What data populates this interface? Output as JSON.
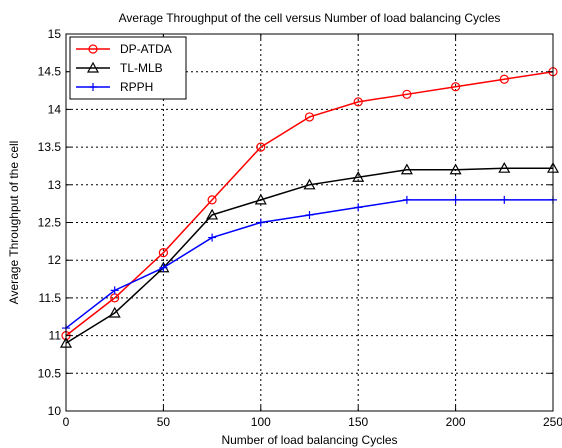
{
  "chart_data": {
    "type": "line",
    "title": "Average Throughput of the cell versus Number of load balancing Cycles",
    "xlabel": "Number of load balancing Cycles",
    "ylabel": "Average Throughput of the cell",
    "xlim": [
      0,
      250
    ],
    "ylim": [
      10,
      15
    ],
    "xticks": [
      0,
      50,
      100,
      150,
      200,
      250
    ],
    "yticks": [
      10,
      10.5,
      11,
      11.5,
      12,
      12.5,
      13,
      13.5,
      14,
      14.5,
      15
    ],
    "xtick_labels": [
      "0",
      "50",
      "100",
      "150",
      "200",
      "250"
    ],
    "ytick_labels": [
      "10",
      "10.5",
      "11",
      "11.5",
      "12",
      "12.5",
      "13",
      "13.5",
      "14",
      "14.5",
      "15"
    ],
    "grid": true,
    "legend_position": "top-left",
    "x": [
      0,
      25,
      50,
      75,
      100,
      125,
      150,
      175,
      200,
      225,
      250
    ],
    "series": [
      {
        "name": "DP-ATDA",
        "color": "#ff0000",
        "marker": "circle",
        "values": [
          11.0,
          11.5,
          12.1,
          12.8,
          13.5,
          13.9,
          14.1,
          14.2,
          14.3,
          14.4,
          14.5
        ]
      },
      {
        "name": "TL-MLB",
        "color": "#000000",
        "marker": "triangle",
        "values": [
          10.9,
          11.3,
          11.9,
          12.6,
          12.8,
          13.0,
          13.1,
          13.2,
          13.2,
          13.22,
          13.22
        ]
      },
      {
        "name": "RPPH",
        "color": "#0000ff",
        "marker": "plus",
        "values": [
          11.1,
          11.6,
          11.9,
          12.3,
          12.5,
          12.6,
          12.7,
          12.8,
          12.8,
          12.8,
          12.8
        ]
      }
    ]
  }
}
